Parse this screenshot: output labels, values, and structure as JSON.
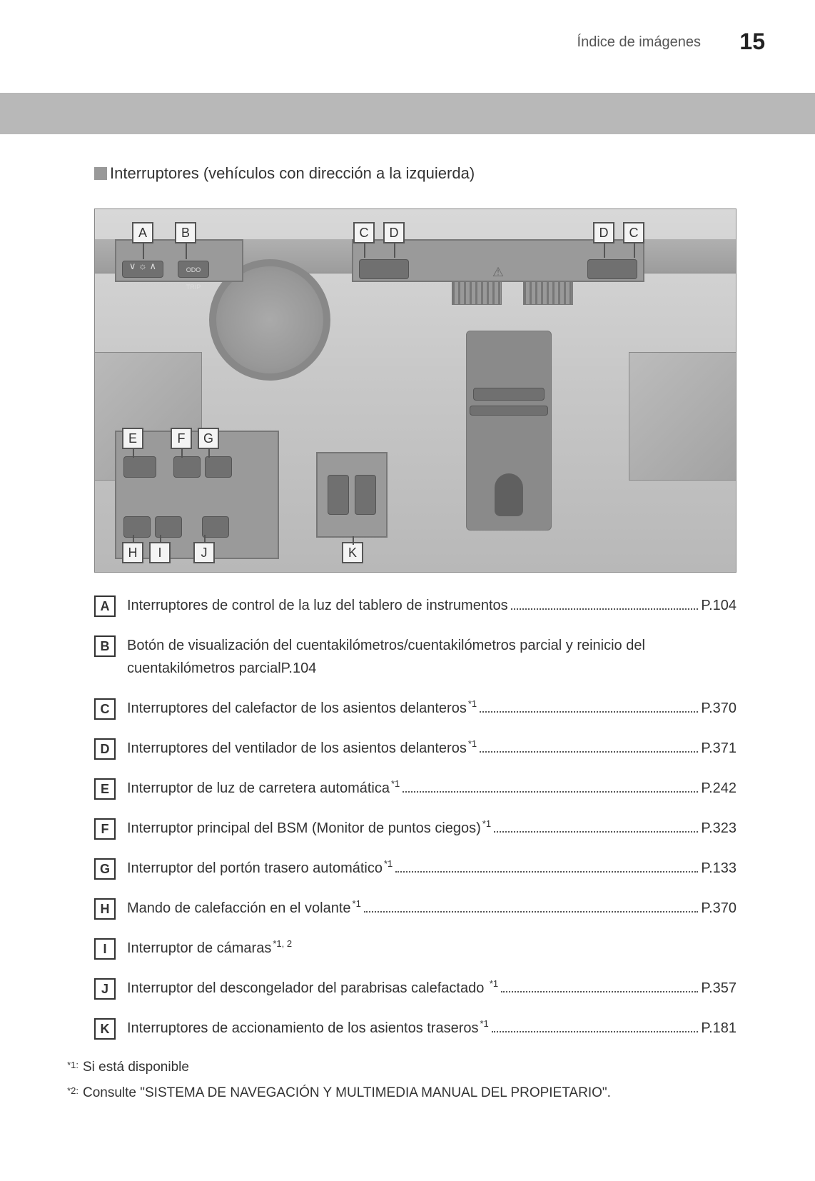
{
  "header": {
    "section": "Índice de imágenes",
    "page_number": "15"
  },
  "section_title": "Interruptores (vehículos con dirección a la izquierda)",
  "callouts": {
    "top_left": [
      "A",
      "B"
    ],
    "top_right_left": [
      "C",
      "D"
    ],
    "top_right_right": [
      "D",
      "C"
    ],
    "bottom_left_1": [
      "E",
      "F",
      "G"
    ],
    "bottom_left_2": [
      "H",
      "I",
      "J"
    ],
    "bottom_center": [
      "K"
    ]
  },
  "items": [
    {
      "letter": "A",
      "text": "Interruptores de control de la luz del tablero de instrumentos",
      "sup": "",
      "page": "P.104"
    },
    {
      "letter": "B",
      "text": "Botón de visualización del cuentakilómetros/cuentakilómetros parcial y reinicio del cuentakilómetros parcialP.104",
      "sup": "",
      "page": ""
    },
    {
      "letter": "C",
      "text": "Interruptores del calefactor de los asientos delanteros",
      "sup": "*1",
      "page": "P.370"
    },
    {
      "letter": "D",
      "text": "Interruptores del ventilador de los asientos delanteros",
      "sup": "*1",
      "page": "P.371"
    },
    {
      "letter": "E",
      "text": "Interruptor de luz de carretera automática",
      "sup": "*1",
      "page": "P.242"
    },
    {
      "letter": "F",
      "text": "Interruptor principal del BSM (Monitor de puntos ciegos)",
      "sup": "*1",
      "page": "P.323"
    },
    {
      "letter": "G",
      "text": "Interruptor del portón trasero automático",
      "sup": "*1",
      "page": "P.133"
    },
    {
      "letter": "H",
      "text": "Mando de calefacción en el volante",
      "sup": "*1",
      "page": "P.370"
    },
    {
      "letter": "I",
      "text": "Interruptor de cámaras",
      "sup": "*1, 2",
      "page": ""
    },
    {
      "letter": "J",
      "text": "Interruptor del descongelador del parabrisas calefactado ",
      "sup": "*1",
      "page": "P.357"
    },
    {
      "letter": "K",
      "text": "Interruptores de accionamiento de los asientos traseros",
      "sup": "*1",
      "page": "P.181"
    }
  ],
  "footnotes": [
    {
      "marker": "*1:",
      "text": "Si está disponible"
    },
    {
      "marker": "*2:",
      "text": "Consulte \"SISTEMA DE NAVEGACIÓN Y MULTIMEDIA MANUAL DEL PROPIETARIO\"."
    }
  ],
  "colors": {
    "gray_bar": "#b8b8b8",
    "bullet": "#999999",
    "text": "#333333"
  }
}
